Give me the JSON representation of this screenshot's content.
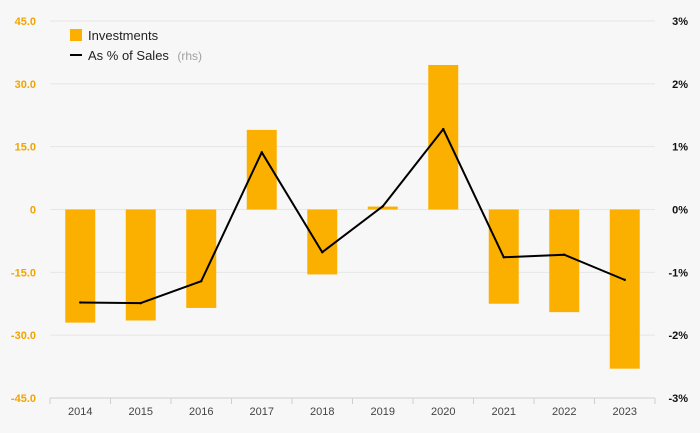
{
  "chart_data": {
    "type": "bar+line",
    "categories": [
      "2014",
      "2015",
      "2016",
      "2017",
      "2018",
      "2019",
      "2020",
      "2021",
      "2022",
      "2023"
    ],
    "series": [
      {
        "name": "Investments",
        "type": "bar",
        "axis": "left",
        "values": [
          -27,
          -26.5,
          -23.5,
          19,
          -15.5,
          0.7,
          34.5,
          -22.5,
          -24.5,
          -38
        ]
      },
      {
        "name": "As % of Sales",
        "name_suffix": "(rhs)",
        "type": "line",
        "axis": "right",
        "values": [
          -1.48,
          -1.49,
          -1.14,
          0.91,
          -0.68,
          0.05,
          1.28,
          -0.76,
          -0.72,
          -1.12
        ]
      }
    ],
    "y_left": {
      "min": -45,
      "max": 45,
      "ticks": [
        45,
        30,
        15,
        0,
        -15,
        -30,
        -45
      ],
      "tick_labels": [
        "45.0",
        "30.0",
        "15.0",
        "0",
        "-15.0",
        "-30.0",
        "-45.0"
      ]
    },
    "y_right": {
      "min": -3,
      "max": 3,
      "ticks": [
        3,
        2,
        1,
        0,
        -1,
        -2,
        -3
      ],
      "tick_labels": [
        "3%",
        "2%",
        "1%",
        "0%",
        "-1%",
        "-2%",
        "-3%"
      ]
    },
    "grid": true,
    "legend_position": "top-left",
    "title": "",
    "xlabel": "",
    "ylabel": "",
    "colors": {
      "bar": "#fbb000",
      "line": "#000000",
      "left_axis_text": "#f0a500",
      "right_axis_text": "#111111",
      "grid": "#e6e6e6",
      "background": "#f7f7f7"
    }
  }
}
